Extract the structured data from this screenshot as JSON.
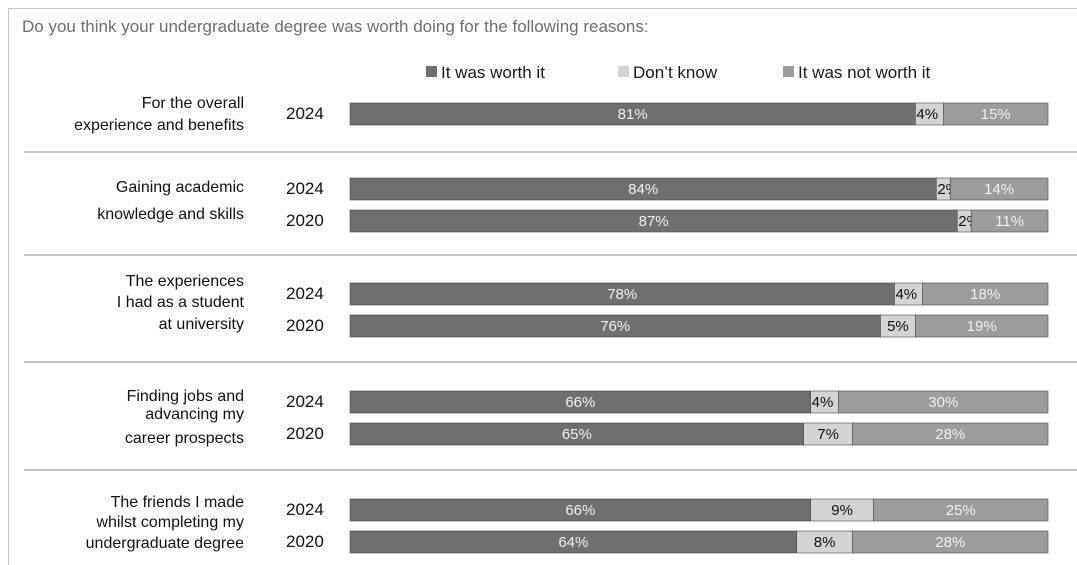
{
  "chart_data": {
    "type": "bar",
    "orientation": "horizontal",
    "stacked": true,
    "percent_stacked": true,
    "title": "Do you think your undergraduate degree was worth doing for the following reasons:",
    "legend": {
      "placement": "top",
      "entries": [
        "It was worth it",
        "Don’t know",
        "It was not worth it"
      ]
    },
    "colors": {
      "It was worth it": "#6f6f6f",
      "Don’t know": "#d4d4d4",
      "It was not worth it": "#9c9c9c"
    },
    "xlim": [
      0,
      100
    ],
    "grid": false,
    "categories": [
      {
        "label": [
          "For the overall",
          "experience and benefits"
        ],
        "rows": [
          {
            "year": "2024",
            "values": [
              81,
              4,
              15
            ]
          }
        ]
      },
      {
        "label": [
          "Gaining academic",
          "knowledge and skills"
        ],
        "rows": [
          {
            "year": "2024",
            "values": [
              84,
              2,
              14
            ]
          },
          {
            "year": "2020",
            "values": [
              87,
              2,
              11
            ]
          }
        ]
      },
      {
        "label": [
          "The experiences",
          "I had as a student",
          "at university"
        ],
        "rows": [
          {
            "year": "2024",
            "values": [
              78,
              4,
              18
            ]
          },
          {
            "year": "2020",
            "values": [
              76,
              5,
              19
            ]
          }
        ]
      },
      {
        "label": [
          "Finding jobs and",
          "advancing my",
          "career prospects"
        ],
        "rows": [
          {
            "year": "2024",
            "values": [
              66,
              4,
              30
            ]
          },
          {
            "year": "2020",
            "values": [
              65,
              7,
              28
            ]
          }
        ]
      },
      {
        "label": [
          "The friends I made",
          "whilst completing my",
          "undergraduate degree"
        ],
        "rows": [
          {
            "year": "2024",
            "values": [
              66,
              9,
              25
            ]
          },
          {
            "year": "2020",
            "values": [
              64,
              8,
              28
            ]
          }
        ]
      }
    ]
  }
}
